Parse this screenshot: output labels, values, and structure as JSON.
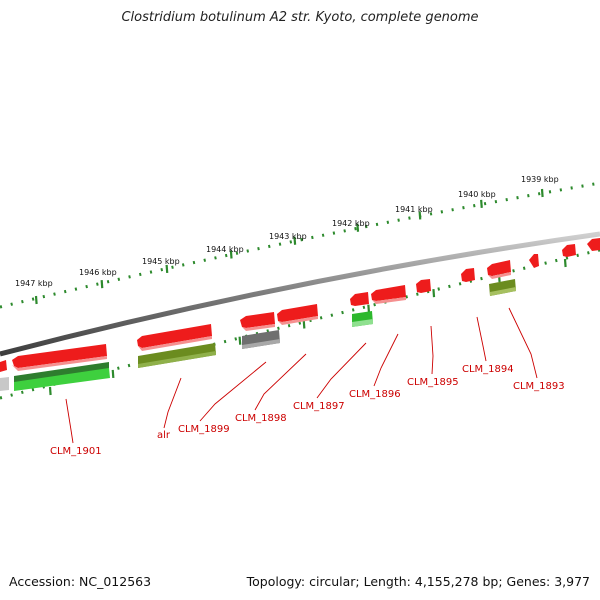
{
  "title": "Clostridium botulinum A2 str. Kyoto, complete genome",
  "footer": {
    "accession": "Accession: NC_012563",
    "topology": "Topology: circular; Length: 4,155,278 bp; Genes: 3,977"
  },
  "scale_labels": [
    "1939 kbp",
    "1940 kbp",
    "1941 kbp",
    "1942 kbp",
    "1943 kbp",
    "1944 kbp",
    "1945 kbp",
    "1946 kbp",
    "1947 kbp"
  ],
  "gene_labels": [
    "CLM_1893",
    "CLM_1894",
    "CLM_1895",
    "CLM_1896",
    "CLM_1897",
    "CLM_1898",
    "CLM_1899",
    "alr",
    "CLM_1901"
  ],
  "colors": {
    "backbone": "#8a8a8a",
    "forward_gene": "#ee1c1c",
    "olive_gene": "#6b8c1f",
    "green_gene": "#2db82d",
    "grey_gene": "#6f6f6f",
    "scale": "#2d8a2d",
    "label": "#cc0000"
  }
}
